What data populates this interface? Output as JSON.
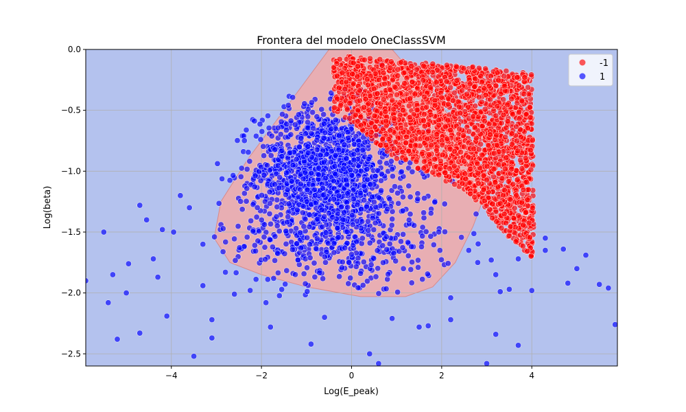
{
  "chart_data": {
    "type": "scatter",
    "title": "Frontera del modelo OneClassSVM",
    "xlabel": "Log(E_peak)",
    "ylabel": "Log(beta)",
    "xlim": [
      -5.9,
      5.9
    ],
    "ylim": [
      -2.6,
      0.0
    ],
    "xticks": [
      -4,
      -2,
      0,
      2,
      4
    ],
    "xtick_labels": [
      "−4",
      "−2",
      "0",
      "2",
      "4"
    ],
    "yticks": [
      0.0,
      -0.5,
      -1.0,
      -1.5,
      -2.0,
      -2.5
    ],
    "ytick_labels": [
      "0.0",
      "−0.5",
      "−1.0",
      "−1.5",
      "−2.0",
      "−2.5"
    ],
    "grid": true,
    "legend_position": "top-right",
    "colors": {
      "background_region": "#b4c2ee",
      "inlier_region": "#e8aeb3",
      "inlier_region_edge": "#d98a8a",
      "series_minus1": "#ff0000",
      "series_plus1": "#0000ff",
      "grid": "#b0b0b0"
    },
    "decision_region": {
      "label": "",
      "boundary": [
        [
          -0.5,
          0.0
        ],
        [
          0.9,
          0.0
        ],
        [
          1.6,
          -0.3
        ],
        [
          2.3,
          -0.6
        ],
        [
          2.8,
          -0.9
        ],
        [
          3.0,
          -1.15
        ],
        [
          2.7,
          -1.45
        ],
        [
          2.3,
          -1.75
        ],
        [
          1.8,
          -1.95
        ],
        [
          1.2,
          -2.03
        ],
        [
          0.2,
          -2.03
        ],
        [
          -1.0,
          -1.95
        ],
        [
          -2.0,
          -1.85
        ],
        [
          -2.7,
          -1.75
        ],
        [
          -3.05,
          -1.55
        ],
        [
          -2.9,
          -1.25
        ],
        [
          -2.3,
          -0.9
        ],
        [
          -1.6,
          -0.55
        ],
        [
          -1.0,
          -0.25
        ]
      ]
    },
    "series": [
      {
        "name": "-1",
        "label": "-1",
        "color": "#ff0000",
        "region": {
          "polygon": [
            [
              -0.4,
              -0.05
            ],
            [
              1.5,
              -0.1
            ],
            [
              3.0,
              -0.15
            ],
            [
              4.0,
              -0.2
            ],
            [
              4.05,
              -1.73
            ],
            [
              3.5,
              -1.55
            ],
            [
              2.5,
              -1.15
            ],
            [
              1.0,
              -0.9
            ],
            [
              -0.4,
              -0.5
            ]
          ],
          "count": 2400
        }
      },
      {
        "name": "1",
        "label": "1",
        "color": "#0000ff",
        "core": {
          "center": [
            -0.6,
            -1.0
          ],
          "spread": [
            0.95,
            0.32
          ],
          "count": 1300
        },
        "wide": {
          "center": [
            -0.2,
            -1.55
          ],
          "spread": [
            2.1,
            0.4
          ],
          "count": 420
        },
        "outliers": [
          [
            -5.9,
            -1.9
          ],
          [
            -5.5,
            -1.5
          ],
          [
            -5.4,
            -2.08
          ],
          [
            -5.2,
            -2.38
          ],
          [
            -5.0,
            -2.0
          ],
          [
            -4.7,
            -2.33
          ],
          [
            -4.7,
            -1.28
          ],
          [
            -4.55,
            -1.4
          ],
          [
            -4.3,
            -1.87
          ],
          [
            -4.1,
            -2.19
          ],
          [
            -3.95,
            -1.5
          ],
          [
            -3.8,
            -1.2
          ],
          [
            -3.6,
            -1.3
          ],
          [
            -3.5,
            -2.52
          ],
          [
            -3.3,
            -1.94
          ],
          [
            -3.1,
            -2.22
          ],
          [
            -3.1,
            -2.37
          ],
          [
            -2.8,
            -1.83
          ],
          [
            -2.6,
            -2.01
          ],
          [
            -1.9,
            -2.08
          ],
          [
            -1.8,
            -2.28
          ],
          [
            -0.9,
            -2.42
          ],
          [
            -0.6,
            -2.2
          ],
          [
            0.4,
            -2.5
          ],
          [
            0.6,
            -2.58
          ],
          [
            0.9,
            -2.21
          ],
          [
            1.5,
            -2.28
          ],
          [
            1.7,
            -2.27
          ],
          [
            2.2,
            -2.04
          ],
          [
            2.2,
            -2.22
          ],
          [
            3.2,
            -2.34
          ],
          [
            3.3,
            -1.99
          ],
          [
            3.5,
            -1.97
          ],
          [
            3.7,
            -2.43
          ],
          [
            3.0,
            -2.58
          ],
          [
            4.0,
            -1.98
          ],
          [
            4.3,
            -1.55
          ],
          [
            4.3,
            -1.65
          ],
          [
            4.8,
            -1.92
          ],
          [
            5.0,
            -1.8
          ],
          [
            5.2,
            -1.69
          ],
          [
            5.5,
            -1.93
          ],
          [
            5.7,
            -1.96
          ],
          [
            5.85,
            -2.26
          ],
          [
            4.7,
            -1.64
          ],
          [
            -4.95,
            -1.76
          ],
          [
            -4.4,
            -1.72
          ],
          [
            -5.3,
            -1.85
          ],
          [
            -4.2,
            -1.48
          ],
          [
            -3.3,
            -1.6
          ],
          [
            2.6,
            -1.65
          ],
          [
            2.8,
            -1.75
          ],
          [
            3.1,
            -1.73
          ],
          [
            3.7,
            -1.72
          ],
          [
            3.2,
            -1.85
          ]
        ]
      }
    ]
  }
}
